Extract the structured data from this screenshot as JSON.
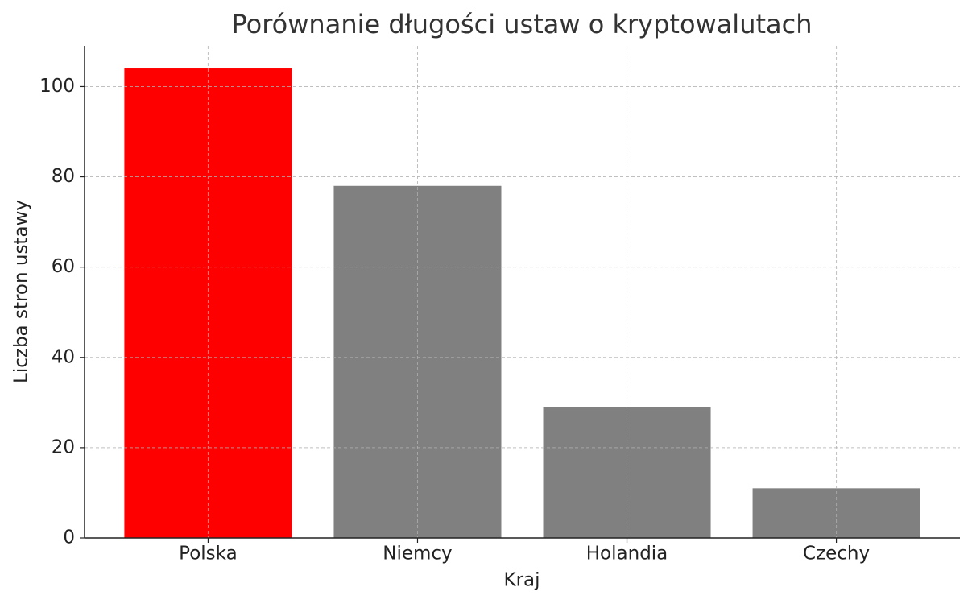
{
  "chart_data": {
    "type": "bar",
    "title": "Porównanie długości ustaw o kryptowalutach",
    "x_label": "Kraj",
    "y_label": "Liczba stron ustawy",
    "categories": [
      "Polska",
      "Niemcy",
      "Holandia",
      "Czechy"
    ],
    "values": [
      104,
      78,
      29,
      11
    ],
    "colors": [
      "#ff0000",
      "#808080",
      "#808080",
      "#808080"
    ],
    "ylim": [
      0,
      109
    ],
    "yticks": [
      0,
      20,
      40,
      60,
      80,
      100
    ],
    "grid": true
  }
}
